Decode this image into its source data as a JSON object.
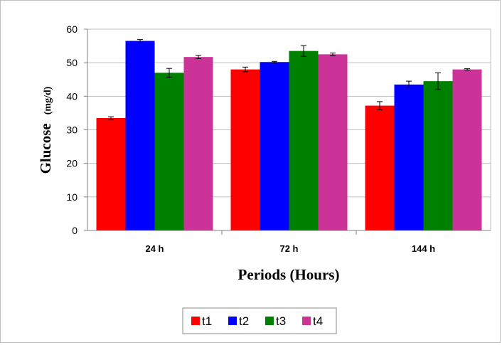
{
  "chart_data": {
    "type": "bar",
    "title": "",
    "xlabel": "Periods (Hours)",
    "ylabel": "Glucose",
    "ylabel_unit": "(mg/d)",
    "ylim": [
      0,
      60
    ],
    "yticks": [
      0,
      10,
      20,
      30,
      40,
      50,
      60
    ],
    "grid": true,
    "legend_position": "bottom",
    "categories": [
      "24 h",
      "72 h",
      "144 h"
    ],
    "series": [
      {
        "name": "t1",
        "color": "#ff0000",
        "values": [
          33.5,
          48.0,
          37.2
        ],
        "errors": [
          0.4,
          0.7,
          1.2
        ]
      },
      {
        "name": "t2",
        "color": "#0000ff",
        "values": [
          56.5,
          50.2,
          43.5
        ],
        "errors": [
          0.4,
          0.2,
          1.0
        ]
      },
      {
        "name": "t3",
        "color": "#008000",
        "values": [
          47.0,
          53.5,
          44.5
        ],
        "errors": [
          1.3,
          1.6,
          2.5
        ]
      },
      {
        "name": "t4",
        "color": "#cc3399",
        "values": [
          51.7,
          52.5,
          48.0
        ],
        "errors": [
          0.5,
          0.4,
          0.2
        ]
      }
    ]
  }
}
